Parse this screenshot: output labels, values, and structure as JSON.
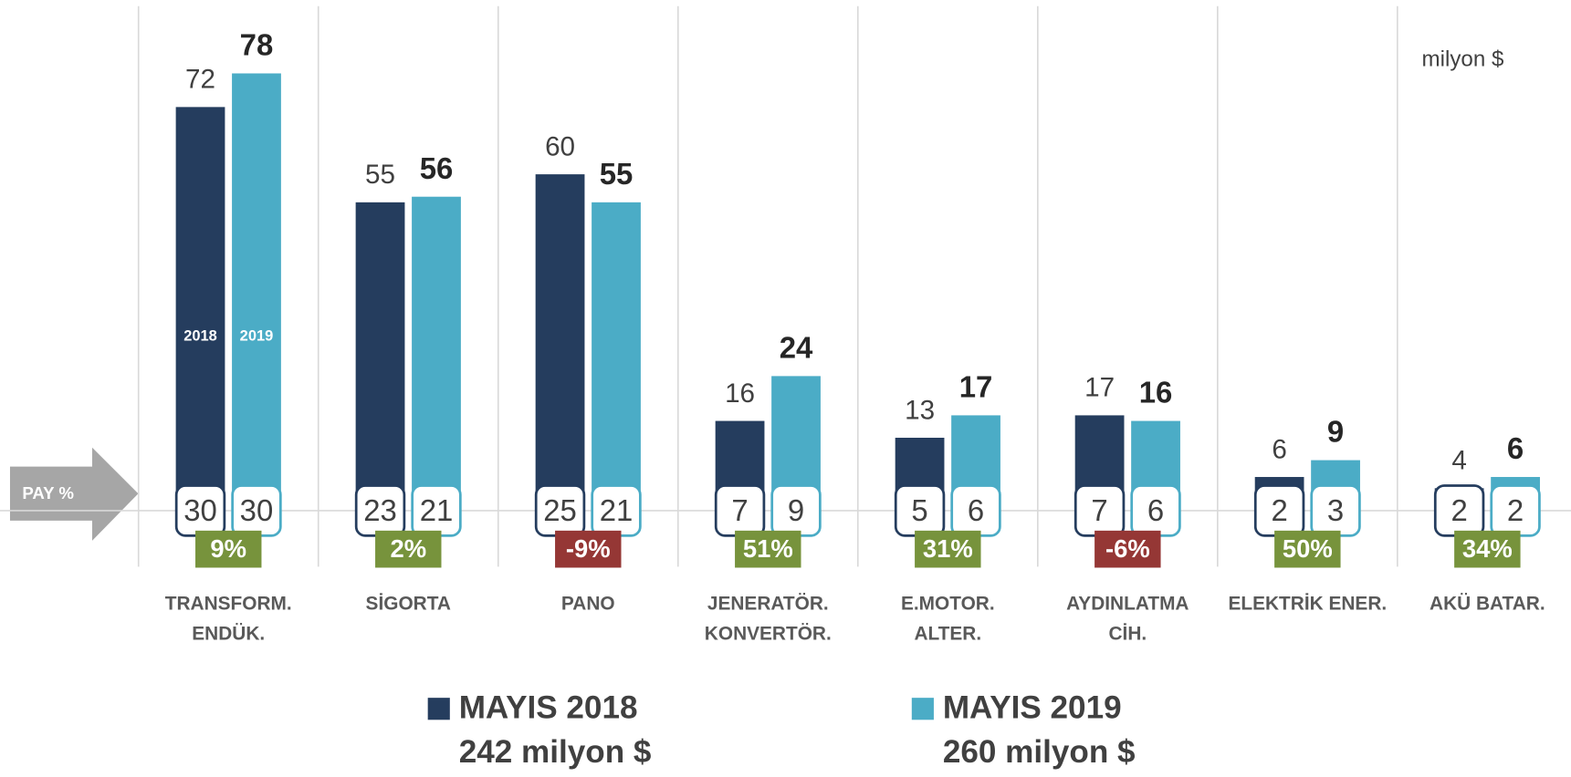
{
  "chart_data": {
    "type": "bar",
    "unit": "milyon $",
    "share_label": "PAY %",
    "categories": [
      [
        "TRANSFORM.",
        "ENDÜK."
      ],
      [
        "SİGORTA"
      ],
      [
        "PANO"
      ],
      [
        "JENERATÖR.",
        "KONVERTÖR."
      ],
      [
        "E.MOTOR.",
        "ALTER."
      ],
      [
        "AYDINLATMA",
        "CİH."
      ],
      [
        "ELEKTRİK ENER."
      ],
      [
        "AKÜ BATAR."
      ]
    ],
    "series": [
      {
        "name": "MAYIS 2018",
        "short_name": "2018",
        "total": "242 milyon $",
        "color": "#253d5e",
        "values": [
          72,
          55,
          60,
          16,
          13,
          17,
          6,
          4
        ],
        "shares": [
          30,
          23,
          25,
          7,
          5,
          7,
          2,
          2
        ]
      },
      {
        "name": "MAYIS 2019",
        "short_name": "2019",
        "total": "260 milyon $",
        "color": "#4bacc6",
        "values": [
          78,
          56,
          55,
          24,
          17,
          16,
          9,
          6
        ],
        "shares": [
          30,
          21,
          21,
          9,
          6,
          6,
          3,
          2
        ]
      }
    ],
    "change": {
      "values": [
        9,
        2,
        -9,
        51,
        31,
        -6,
        50,
        34
      ],
      "value_labels": [
        "9%",
        "2%",
        "-9%",
        "51%",
        "31%",
        "-6%",
        "50%",
        "34%"
      ],
      "up_color": "#77933c",
      "down_color": "#953735"
    },
    "ylim": [
      0,
      90
    ]
  }
}
